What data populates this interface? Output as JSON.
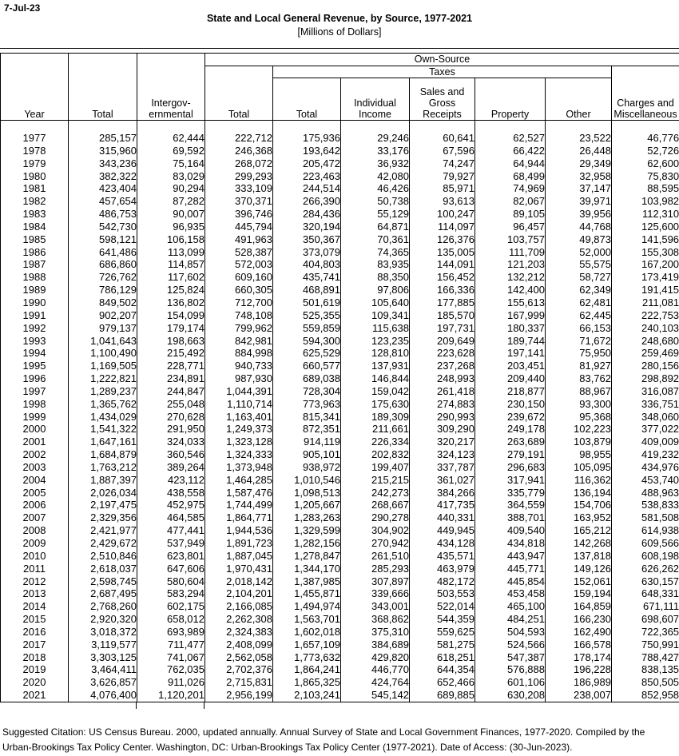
{
  "date_label": "7-Jul-23",
  "title": "State and Local General Revenue, by Source, 1977-2021",
  "subtitle": "[Millions of Dollars]",
  "colors": {
    "text": "#000000",
    "border": "#000000",
    "background": "#ffffff"
  },
  "table": {
    "header": {
      "own_source": "Own-Source",
      "taxes": "Taxes",
      "col_year": "Year",
      "col_total": "Total",
      "col_intergovernmental": "Intergov-\nernmental",
      "col_own_source_total": "Total",
      "col_taxes_total": "Total",
      "col_individual_income": "Individual\nIncome",
      "col_sales_gross": "Sales and\nGross\nReceipts",
      "col_property": "Property",
      "col_other": "Other",
      "col_charges": "Charges and\nMiscellaneous"
    },
    "rows": [
      [
        "1977",
        "285,157",
        "62,444",
        "222,712",
        "175,936",
        "29,246",
        "60,641",
        "62,527",
        "23,522",
        "46,776"
      ],
      [
        "1978",
        "315,960",
        "69,592",
        "246,368",
        "193,642",
        "33,176",
        "67,596",
        "66,422",
        "26,448",
        "52,726"
      ],
      [
        "1979",
        "343,236",
        "75,164",
        "268,072",
        "205,472",
        "36,932",
        "74,247",
        "64,944",
        "29,349",
        "62,600"
      ],
      [
        "1980",
        "382,322",
        "83,029",
        "299,293",
        "223,463",
        "42,080",
        "79,927",
        "68,499",
        "32,958",
        "75,830"
      ],
      [
        "1981",
        "423,404",
        "90,294",
        "333,109",
        "244,514",
        "46,426",
        "85,971",
        "74,969",
        "37,147",
        "88,595"
      ],
      [
        "1982",
        "457,654",
        "87,282",
        "370,371",
        "266,390",
        "50,738",
        "93,613",
        "82,067",
        "39,971",
        "103,982"
      ],
      [
        "1983",
        "486,753",
        "90,007",
        "396,746",
        "284,436",
        "55,129",
        "100,247",
        "89,105",
        "39,956",
        "112,310"
      ],
      [
        "1984",
        "542,730",
        "96,935",
        "445,794",
        "320,194",
        "64,871",
        "114,097",
        "96,457",
        "44,768",
        "125,600"
      ],
      [
        "1985",
        "598,121",
        "106,158",
        "491,963",
        "350,367",
        "70,361",
        "126,376",
        "103,757",
        "49,873",
        "141,596"
      ],
      [
        "1986",
        "641,486",
        "113,099",
        "528,387",
        "373,079",
        "74,365",
        "135,005",
        "111,709",
        "52,000",
        "155,308"
      ],
      [
        "1987",
        "686,860",
        "114,857",
        "572,003",
        "404,803",
        "83,935",
        "144,091",
        "121,203",
        "55,575",
        "167,200"
      ],
      [
        "1988",
        "726,762",
        "117,602",
        "609,160",
        "435,741",
        "88,350",
        "156,452",
        "132,212",
        "58,727",
        "173,419"
      ],
      [
        "1989",
        "786,129",
        "125,824",
        "660,305",
        "468,891",
        "97,806",
        "166,336",
        "142,400",
        "62,349",
        "191,415"
      ],
      [
        "1990",
        "849,502",
        "136,802",
        "712,700",
        "501,619",
        "105,640",
        "177,885",
        "155,613",
        "62,481",
        "211,081"
      ],
      [
        "1991",
        "902,207",
        "154,099",
        "748,108",
        "525,355",
        "109,341",
        "185,570",
        "167,999",
        "62,445",
        "222,753"
      ],
      [
        "1992",
        "979,137",
        "179,174",
        "799,962",
        "559,859",
        "115,638",
        "197,731",
        "180,337",
        "66,153",
        "240,103"
      ],
      [
        "1993",
        "1,041,643",
        "198,663",
        "842,981",
        "594,300",
        "123,235",
        "209,649",
        "189,744",
        "71,672",
        "248,680"
      ],
      [
        "1994",
        "1,100,490",
        "215,492",
        "884,998",
        "625,529",
        "128,810",
        "223,628",
        "197,141",
        "75,950",
        "259,469"
      ],
      [
        "1995",
        "1,169,505",
        "228,771",
        "940,733",
        "660,577",
        "137,931",
        "237,268",
        "203,451",
        "81,927",
        "280,156"
      ],
      [
        "1996",
        "1,222,821",
        "234,891",
        "987,930",
        "689,038",
        "146,844",
        "248,993",
        "209,440",
        "83,762",
        "298,892"
      ],
      [
        "1997",
        "1,289,237",
        "244,847",
        "1,044,391",
        "728,304",
        "159,042",
        "261,418",
        "218,877",
        "88,967",
        "316,087"
      ],
      [
        "1998",
        "1,365,762",
        "255,048",
        "1,110,714",
        "773,963",
        "175,630",
        "274,883",
        "230,150",
        "93,300",
        "336,751"
      ],
      [
        "1999",
        "1,434,029",
        "270,628",
        "1,163,401",
        "815,341",
        "189,309",
        "290,993",
        "239,672",
        "95,368",
        "348,060"
      ],
      [
        "2000",
        "1,541,322",
        "291,950",
        "1,249,373",
        "872,351",
        "211,661",
        "309,290",
        "249,178",
        "102,223",
        "377,022"
      ],
      [
        "2001",
        "1,647,161",
        "324,033",
        "1,323,128",
        "914,119",
        "226,334",
        "320,217",
        "263,689",
        "103,879",
        "409,009"
      ],
      [
        "2002",
        "1,684,879",
        "360,546",
        "1,324,333",
        "905,101",
        "202,832",
        "324,123",
        "279,191",
        "98,955",
        "419,232"
      ],
      [
        "2003",
        "1,763,212",
        "389,264",
        "1,373,948",
        "938,972",
        "199,407",
        "337,787",
        "296,683",
        "105,095",
        "434,976"
      ],
      [
        "2004",
        "1,887,397",
        "423,112",
        "1,464,285",
        "1,010,546",
        "215,215",
        "361,027",
        "317,941",
        "116,362",
        "453,740"
      ],
      [
        "2005",
        "2,026,034",
        "438,558",
        "1,587,476",
        "1,098,513",
        "242,273",
        "384,266",
        "335,779",
        "136,194",
        "488,963"
      ],
      [
        "2006",
        "2,197,475",
        "452,975",
        "1,744,499",
        "1,205,667",
        "268,667",
        "417,735",
        "364,559",
        "154,706",
        "538,833"
      ],
      [
        "2007",
        "2,329,356",
        "464,585",
        "1,864,771",
        "1,283,263",
        "290,278",
        "440,331",
        "388,701",
        "163,952",
        "581,508"
      ],
      [
        "2008",
        "2,421,977",
        "477,441",
        "1,944,536",
        "1,329,599",
        "304,902",
        "449,945",
        "409,540",
        "165,212",
        "614,938"
      ],
      [
        "2009",
        "2,429,672",
        "537,949",
        "1,891,723",
        "1,282,156",
        "270,942",
        "434,128",
        "434,818",
        "142,268",
        "609,566"
      ],
      [
        "2010",
        "2,510,846",
        "623,801",
        "1,887,045",
        "1,278,847",
        "261,510",
        "435,571",
        "443,947",
        "137,818",
        "608,198"
      ],
      [
        "2011",
        "2,618,037",
        "647,606",
        "1,970,431",
        "1,344,170",
        "285,293",
        "463,979",
        "445,771",
        "149,126",
        "626,262"
      ],
      [
        "2012",
        "2,598,745",
        "580,604",
        "2,018,142",
        "1,387,985",
        "307,897",
        "482,172",
        "445,854",
        "152,061",
        "630,157"
      ],
      [
        "2013",
        "2,687,495",
        "583,294",
        "2,104,201",
        "1,455,871",
        "339,666",
        "503,553",
        "453,458",
        "159,194",
        "648,331"
      ],
      [
        "2014",
        "2,768,260",
        "602,175",
        "2,166,085",
        "1,494,974",
        "343,001",
        "522,014",
        "465,100",
        "164,859",
        "671,111"
      ],
      [
        "2015",
        "2,920,320",
        "658,012",
        "2,262,308",
        "1,563,701",
        "368,862",
        "544,359",
        "484,251",
        "166,230",
        "698,607"
      ],
      [
        "2016",
        "3,018,372",
        "693,989",
        "2,324,383",
        "1,602,018",
        "375,310",
        "559,625",
        "504,593",
        "162,490",
        "722,365"
      ],
      [
        "2017",
        "3,119,577",
        "711,477",
        "2,408,099",
        "1,657,109",
        "384,689",
        "581,275",
        "524,566",
        "166,578",
        "750,991"
      ],
      [
        "2018",
        "3,303,125",
        "741,067",
        "2,562,058",
        "1,773,632",
        "429,820",
        "618,251",
        "547,387",
        "178,174",
        "788,427"
      ],
      [
        "2019",
        "3,464,411",
        "762,035",
        "2,702,376",
        "1,864,241",
        "446,770",
        "644,354",
        "576,888",
        "196,228",
        "838,135"
      ],
      [
        "2020",
        "3,626,857",
        "911,026",
        "2,715,831",
        "1,865,325",
        "424,764",
        "652,466",
        "601,106",
        "186,989",
        "850,505"
      ],
      [
        "2021",
        "4,076,400",
        "1,120,201",
        "2,956,199",
        "2,103,241",
        "545,142",
        "689,885",
        "630,208",
        "238,007",
        "852,958"
      ]
    ]
  },
  "footer": {
    "line1": "Suggested Citation: US Census Bureau. 2000, updated annually. Annual Survey of State and Local Government Finances, 1977-2020. Compiled by the",
    "line2": "Urban-Brookings Tax Policy Center. Washington, DC: Urban-Brookings Tax Policy Center (1977-2021). Date of Access: (30-Jun-2023)."
  }
}
